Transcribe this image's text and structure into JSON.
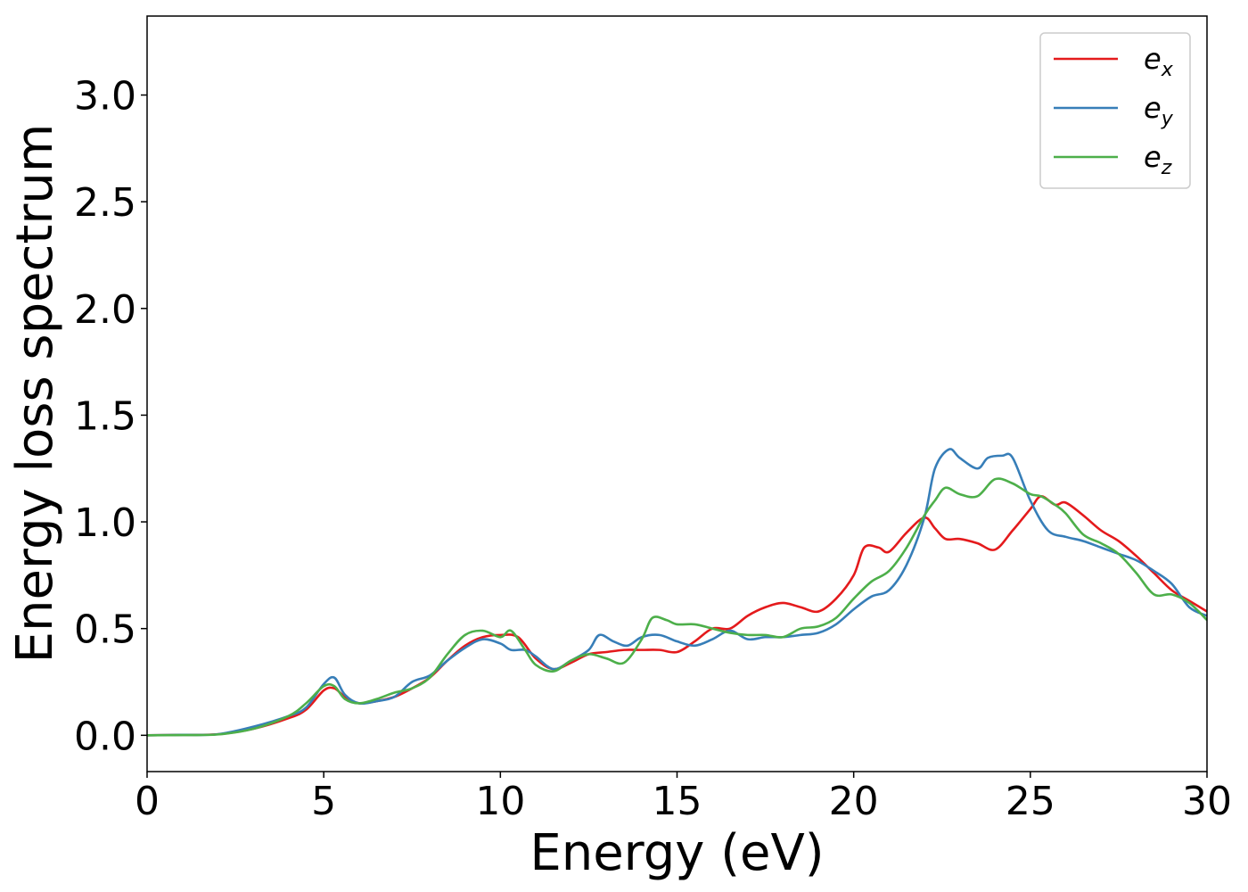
{
  "chart_data": {
    "type": "line",
    "title": "",
    "xlabel": "Energy (eV)",
    "ylabel": "Energy loss spectrum",
    "xlim": [
      0,
      30
    ],
    "ylim": [
      -0.17,
      3.37
    ],
    "xticks": [
      "0",
      "5",
      "10",
      "15",
      "20",
      "25",
      "30"
    ],
    "xtick_values": [
      0,
      5,
      10,
      15,
      20,
      25,
      30
    ],
    "yticks": [
      "0.0",
      "0.5",
      "1.0",
      "1.5",
      "2.0",
      "2.5",
      "3.0"
    ],
    "ytick_values": [
      0.0,
      0.5,
      1.0,
      1.5,
      2.0,
      2.5,
      3.0
    ],
    "grid": false,
    "legend_position": "top-right",
    "series": [
      {
        "name": "e_x",
        "label_main": "e",
        "label_sub": "x",
        "color": "#e41a1c",
        "points": [
          [
            0,
            0
          ],
          [
            1,
            0.002
          ],
          [
            2,
            0.005
          ],
          [
            3,
            0.03
          ],
          [
            4,
            0.08
          ],
          [
            4.5,
            0.12
          ],
          [
            5,
            0.21
          ],
          [
            5.3,
            0.22
          ],
          [
            5.6,
            0.18
          ],
          [
            6,
            0.15
          ],
          [
            6.5,
            0.16
          ],
          [
            7,
            0.18
          ],
          [
            7.5,
            0.22
          ],
          [
            8,
            0.27
          ],
          [
            8.5,
            0.35
          ],
          [
            9,
            0.42
          ],
          [
            9.5,
            0.46
          ],
          [
            10,
            0.47
          ],
          [
            10.5,
            0.46
          ],
          [
            11,
            0.36
          ],
          [
            11.5,
            0.31
          ],
          [
            12,
            0.34
          ],
          [
            12.5,
            0.38
          ],
          [
            13,
            0.39
          ],
          [
            13.5,
            0.4
          ],
          [
            14,
            0.4
          ],
          [
            14.5,
            0.4
          ],
          [
            15,
            0.39
          ],
          [
            15.5,
            0.44
          ],
          [
            16,
            0.5
          ],
          [
            16.5,
            0.5
          ],
          [
            17,
            0.56
          ],
          [
            17.5,
            0.6
          ],
          [
            18,
            0.62
          ],
          [
            18.5,
            0.6
          ],
          [
            19,
            0.58
          ],
          [
            19.5,
            0.64
          ],
          [
            20,
            0.75
          ],
          [
            20.3,
            0.88
          ],
          [
            20.7,
            0.88
          ],
          [
            21,
            0.86
          ],
          [
            21.5,
            0.95
          ],
          [
            22,
            1.02
          ],
          [
            22.3,
            0.97
          ],
          [
            22.6,
            0.92
          ],
          [
            23,
            0.92
          ],
          [
            23.5,
            0.9
          ],
          [
            24,
            0.87
          ],
          [
            24.5,
            0.96
          ],
          [
            25,
            1.06
          ],
          [
            25.3,
            1.12
          ],
          [
            25.7,
            1.08
          ],
          [
            26,
            1.09
          ],
          [
            26.5,
            1.03
          ],
          [
            27,
            0.96
          ],
          [
            27.5,
            0.91
          ],
          [
            28,
            0.84
          ],
          [
            28.5,
            0.76
          ],
          [
            29,
            0.68
          ],
          [
            29.5,
            0.63
          ],
          [
            30,
            0.58
          ]
        ]
      },
      {
        "name": "e_y",
        "label_main": "e",
        "label_sub": "y",
        "color": "#377eb8",
        "points": [
          [
            0,
            0
          ],
          [
            1,
            0.002
          ],
          [
            2,
            0.005
          ],
          [
            3,
            0.04
          ],
          [
            4,
            0.09
          ],
          [
            4.5,
            0.13
          ],
          [
            5,
            0.24
          ],
          [
            5.3,
            0.27
          ],
          [
            5.6,
            0.19
          ],
          [
            6,
            0.15
          ],
          [
            6.5,
            0.16
          ],
          [
            7,
            0.18
          ],
          [
            7.5,
            0.25
          ],
          [
            8,
            0.28
          ],
          [
            8.5,
            0.35
          ],
          [
            9,
            0.41
          ],
          [
            9.5,
            0.45
          ],
          [
            10,
            0.43
          ],
          [
            10.3,
            0.4
          ],
          [
            10.7,
            0.4
          ],
          [
            11,
            0.37
          ],
          [
            11.5,
            0.31
          ],
          [
            12,
            0.35
          ],
          [
            12.5,
            0.4
          ],
          [
            12.8,
            0.47
          ],
          [
            13.2,
            0.44
          ],
          [
            13.6,
            0.42
          ],
          [
            14,
            0.46
          ],
          [
            14.5,
            0.47
          ],
          [
            15,
            0.44
          ],
          [
            15.5,
            0.42
          ],
          [
            16,
            0.45
          ],
          [
            16.5,
            0.49
          ],
          [
            17,
            0.45
          ],
          [
            17.5,
            0.46
          ],
          [
            18,
            0.46
          ],
          [
            18.5,
            0.47
          ],
          [
            19,
            0.48
          ],
          [
            19.5,
            0.52
          ],
          [
            20,
            0.59
          ],
          [
            20.5,
            0.65
          ],
          [
            21,
            0.68
          ],
          [
            21.5,
            0.8
          ],
          [
            22,
            1.02
          ],
          [
            22.3,
            1.25
          ],
          [
            22.7,
            1.34
          ],
          [
            23,
            1.3
          ],
          [
            23.5,
            1.25
          ],
          [
            23.8,
            1.3
          ],
          [
            24.2,
            1.31
          ],
          [
            24.5,
            1.3
          ],
          [
            25,
            1.1
          ],
          [
            25.5,
            0.96
          ],
          [
            26,
            0.93
          ],
          [
            26.5,
            0.91
          ],
          [
            27,
            0.88
          ],
          [
            27.5,
            0.85
          ],
          [
            28,
            0.82
          ],
          [
            28.5,
            0.77
          ],
          [
            29,
            0.71
          ],
          [
            29.5,
            0.6
          ],
          [
            30,
            0.56
          ]
        ]
      },
      {
        "name": "e_z",
        "label_main": "e",
        "label_sub": "z",
        "color": "#4daf4a",
        "points": [
          [
            0,
            0
          ],
          [
            1,
            0.001
          ],
          [
            2,
            0.004
          ],
          [
            3,
            0.03
          ],
          [
            4,
            0.09
          ],
          [
            4.5,
            0.15
          ],
          [
            5,
            0.23
          ],
          [
            5.3,
            0.23
          ],
          [
            5.6,
            0.17
          ],
          [
            6,
            0.15
          ],
          [
            6.5,
            0.17
          ],
          [
            7,
            0.2
          ],
          [
            7.5,
            0.22
          ],
          [
            8,
            0.27
          ],
          [
            8.5,
            0.38
          ],
          [
            9,
            0.47
          ],
          [
            9.5,
            0.49
          ],
          [
            10,
            0.46
          ],
          [
            10.3,
            0.49
          ],
          [
            10.7,
            0.4
          ],
          [
            11,
            0.33
          ],
          [
            11.5,
            0.3
          ],
          [
            12,
            0.35
          ],
          [
            12.5,
            0.38
          ],
          [
            13,
            0.36
          ],
          [
            13.5,
            0.34
          ],
          [
            14,
            0.45
          ],
          [
            14.3,
            0.55
          ],
          [
            14.7,
            0.54
          ],
          [
            15,
            0.52
          ],
          [
            15.5,
            0.52
          ],
          [
            16,
            0.5
          ],
          [
            16.5,
            0.48
          ],
          [
            17,
            0.47
          ],
          [
            17.5,
            0.47
          ],
          [
            18,
            0.46
          ],
          [
            18.5,
            0.5
          ],
          [
            19,
            0.51
          ],
          [
            19.5,
            0.55
          ],
          [
            20,
            0.64
          ],
          [
            20.5,
            0.72
          ],
          [
            21,
            0.77
          ],
          [
            21.5,
            0.88
          ],
          [
            22,
            1.03
          ],
          [
            22.3,
            1.1
          ],
          [
            22.6,
            1.16
          ],
          [
            23,
            1.13
          ],
          [
            23.5,
            1.12
          ],
          [
            24,
            1.2
          ],
          [
            24.5,
            1.18
          ],
          [
            25,
            1.13
          ],
          [
            25.3,
            1.12
          ],
          [
            25.7,
            1.08
          ],
          [
            26,
            1.04
          ],
          [
            26.5,
            0.94
          ],
          [
            27,
            0.9
          ],
          [
            27.5,
            0.85
          ],
          [
            28,
            0.76
          ],
          [
            28.5,
            0.66
          ],
          [
            29,
            0.66
          ],
          [
            29.5,
            0.62
          ],
          [
            30,
            0.54
          ]
        ]
      }
    ]
  }
}
